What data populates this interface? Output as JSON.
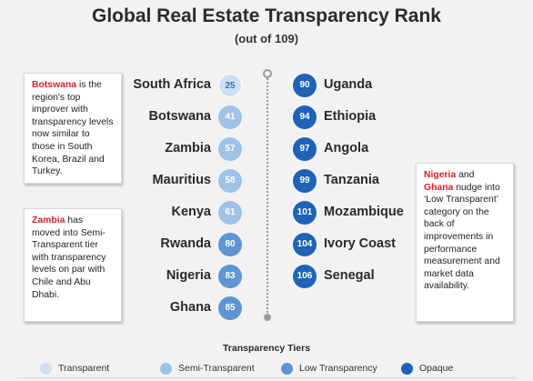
{
  "chart_data": {
    "type": "table",
    "title": "Global Real Estate Transparency Rank",
    "subtitle": "(out of 109)",
    "left_column": [
      {
        "country": "South Africa",
        "rank": 25,
        "tier": "Transparent"
      },
      {
        "country": "Botswana",
        "rank": 41,
        "tier": "Semi-Transparent"
      },
      {
        "country": "Zambia",
        "rank": 57,
        "tier": "Semi-Transparent"
      },
      {
        "country": "Mauritius",
        "rank": 58,
        "tier": "Semi-Transparent"
      },
      {
        "country": "Kenya",
        "rank": 61,
        "tier": "Semi-Transparent"
      },
      {
        "country": "Rwanda",
        "rank": 80,
        "tier": "Low Transparency"
      },
      {
        "country": "Nigeria",
        "rank": 83,
        "tier": "Low Transparency"
      },
      {
        "country": "Ghana",
        "rank": 85,
        "tier": "Low Transparency"
      }
    ],
    "right_column": [
      {
        "country": "Uganda",
        "rank": 90,
        "tier": "Opaque"
      },
      {
        "country": "Ethiopia",
        "rank": 94,
        "tier": "Opaque"
      },
      {
        "country": "Angola",
        "rank": 97,
        "tier": "Opaque"
      },
      {
        "country": "Tanzania",
        "rank": 99,
        "tier": "Opaque"
      },
      {
        "country": "Mozambique",
        "rank": 101,
        "tier": "Opaque"
      },
      {
        "country": "Ivory Coast",
        "rank": 104,
        "tier": "Opaque"
      },
      {
        "country": "Senegal",
        "rank": 106,
        "tier": "Opaque"
      }
    ],
    "legend": {
      "title": "Transparency Tiers",
      "placement": "bottom",
      "items": [
        {
          "label": "Transparent",
          "color": "#cfe0f3"
        },
        {
          "label": "Semi-Transparent",
          "color": "#9fc3e7"
        },
        {
          "label": "Low Transparency",
          "color": "#5e95d2"
        },
        {
          "label": "Opaque",
          "color": "#1e63b8"
        }
      ]
    }
  },
  "notes": {
    "botswana": {
      "highlight": "Botswana",
      "text": " is the region's top improver with transparency levels now similar to those in South Korea, Brazil and Turkey."
    },
    "zambia": {
      "highlight": "Zambia",
      "text": " has moved into Semi-Transparent tier with transparency levels on par with Chile and Abu Dhabi."
    },
    "nigeria_ghana": {
      "highlight1": "Nigeria",
      "mid": " and ",
      "highlight2": "Ghana",
      "text": " nudge into ‘Low Transparent’ category on the back of improvements in performance measurement and market data availability."
    }
  },
  "colors": {
    "highlight": "#d2232a",
    "background": "#f2f2f2"
  }
}
